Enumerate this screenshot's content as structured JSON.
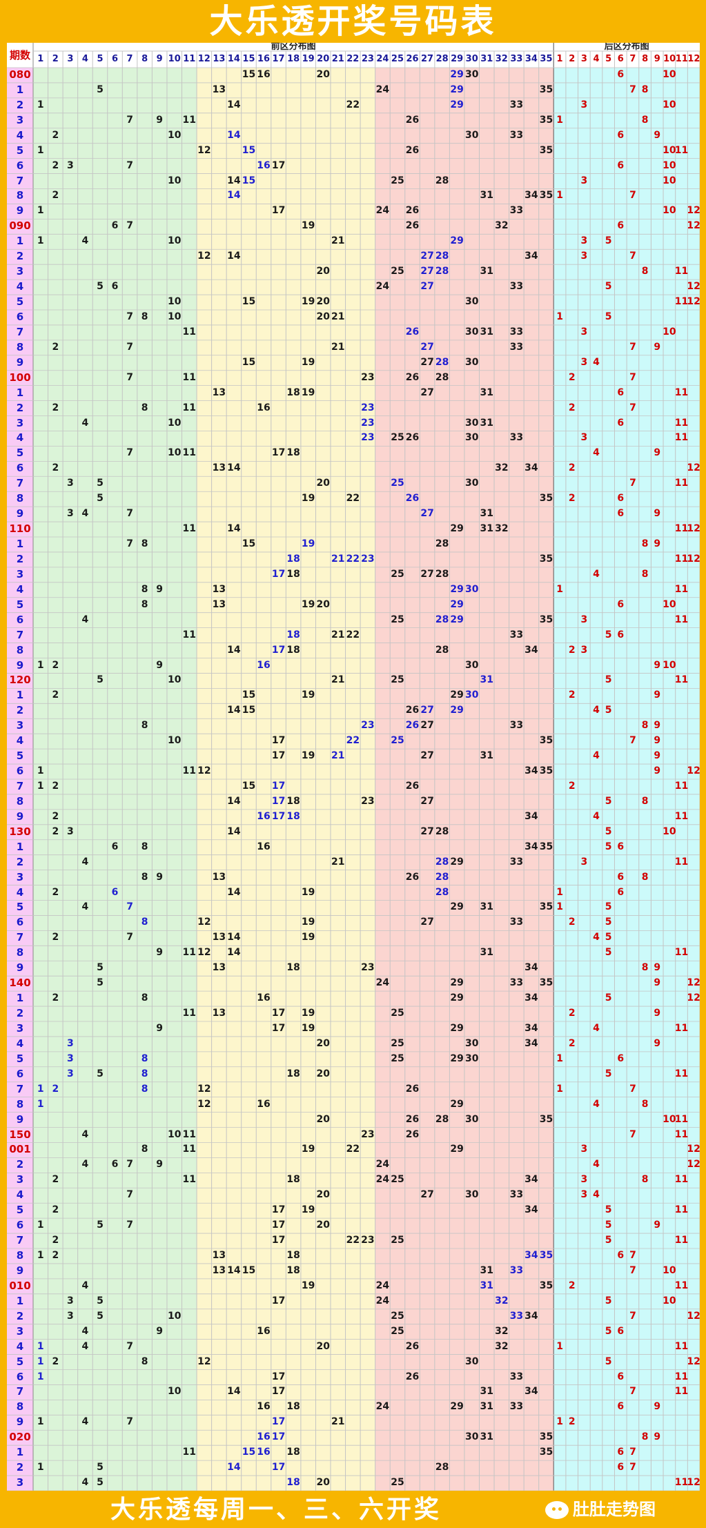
{
  "title": "大乐透开奖号码表",
  "header": {
    "period_label": "期数",
    "front_label": "前区分布图",
    "back_label": "后区分布图"
  },
  "footer": {
    "text": "大乐透每周一、三、六开奖",
    "brand": "肚肚走势图"
  },
  "colors": {
    "bg": "#f7b500",
    "period_bg": "#f9cbf5",
    "zone1": "#dbf4d8",
    "zone2": "#fdf6cc",
    "zone3": "#fbd5d0",
    "back_bg": "#ccfafa",
    "grid": "#c4c4c4",
    "normal": "#1a1a1a",
    "highlight": "#1f1fd0",
    "back": "#d30000",
    "period_red": "#d30000",
    "period_blue": "#1a1acc"
  },
  "rows": [
    {
      "p": "080",
      "f": [
        15,
        16,
        20,
        29,
        30
      ],
      "b": [
        6,
        10
      ],
      "hl": [
        29
      ]
    },
    {
      "p": "1",
      "f": [
        5,
        13,
        24,
        29,
        35
      ],
      "b": [
        7,
        8
      ],
      "hl": [
        29
      ]
    },
    {
      "p": "2",
      "f": [
        1,
        14,
        22,
        29,
        33
      ],
      "b": [
        3,
        10
      ],
      "hl": [
        29
      ]
    },
    {
      "p": "3",
      "f": [
        7,
        9,
        11,
        26,
        35
      ],
      "b": [
        1,
        8
      ],
      "hl": []
    },
    {
      "p": "4",
      "f": [
        2,
        10,
        14,
        30,
        33
      ],
      "b": [
        6,
        9
      ],
      "hl": [
        14
      ]
    },
    {
      "p": "5",
      "f": [
        1,
        12,
        15,
        26,
        35
      ],
      "b": [
        10,
        11
      ],
      "hl": [
        15
      ]
    },
    {
      "p": "6",
      "f": [
        2,
        3,
        7,
        16,
        17
      ],
      "b": [
        6,
        10
      ],
      "hl": [
        16
      ]
    },
    {
      "p": "7",
      "f": [
        10,
        14,
        15,
        25,
        28
      ],
      "b": [
        3,
        10
      ],
      "hl": [
        15
      ]
    },
    {
      "p": "8",
      "f": [
        2,
        14,
        31,
        34,
        35
      ],
      "b": [
        1,
        7
      ],
      "hl": [
        14
      ]
    },
    {
      "p": "9",
      "f": [
        1,
        17,
        24,
        26,
        33
      ],
      "b": [
        10,
        12
      ],
      "hl": []
    },
    {
      "p": "090",
      "f": [
        6,
        7,
        19,
        26,
        32
      ],
      "b": [
        6,
        12
      ],
      "hl": []
    },
    {
      "p": "1",
      "f": [
        1,
        4,
        10,
        21,
        29
      ],
      "b": [
        3,
        5
      ],
      "hl": [
        29
      ]
    },
    {
      "p": "2",
      "f": [
        12,
        14,
        27,
        28,
        34
      ],
      "b": [
        3,
        7
      ],
      "hl": [
        27,
        28
      ]
    },
    {
      "p": "3",
      "f": [
        20,
        25,
        27,
        28,
        31
      ],
      "b": [
        8,
        11
      ],
      "hl": [
        27,
        28
      ]
    },
    {
      "p": "4",
      "f": [
        5,
        6,
        24,
        27,
        33
      ],
      "b": [
        5,
        12
      ],
      "hl": [
        27
      ]
    },
    {
      "p": "5",
      "f": [
        10,
        15,
        19,
        20,
        30
      ],
      "b": [
        11,
        12
      ],
      "hl": []
    },
    {
      "p": "6",
      "f": [
        7,
        8,
        10,
        20,
        21
      ],
      "b": [
        1,
        5
      ],
      "hl": []
    },
    {
      "p": "7",
      "f": [
        11,
        26,
        30,
        31,
        33
      ],
      "b": [
        3,
        10
      ],
      "hl": [
        26
      ]
    },
    {
      "p": "8",
      "f": [
        2,
        7,
        21,
        27,
        33
      ],
      "b": [
        7,
        9
      ],
      "hl": [
        27
      ]
    },
    {
      "p": "9",
      "f": [
        15,
        19,
        27,
        28,
        30
      ],
      "b": [
        3,
        4
      ],
      "hl": [
        28
      ]
    },
    {
      "p": "100",
      "f": [
        7,
        11,
        23,
        26,
        28
      ],
      "b": [
        2,
        7
      ],
      "hl": []
    },
    {
      "p": "1",
      "f": [
        13,
        18,
        19,
        27,
        31
      ],
      "b": [
        6,
        11
      ],
      "hl": []
    },
    {
      "p": "2",
      "f": [
        2,
        8,
        11,
        16,
        23
      ],
      "b": [
        2,
        7
      ],
      "hl": [
        23
      ]
    },
    {
      "p": "3",
      "f": [
        4,
        10,
        23,
        30,
        31
      ],
      "b": [
        6,
        11
      ],
      "hl": [
        23
      ]
    },
    {
      "p": "4",
      "f": [
        23,
        25,
        26,
        30,
        33
      ],
      "b": [
        3,
        11
      ],
      "hl": [
        23
      ]
    },
    {
      "p": "5",
      "f": [
        7,
        10,
        11,
        17,
        18
      ],
      "b": [
        4,
        9
      ],
      "hl": []
    },
    {
      "p": "6",
      "f": [
        2,
        13,
        14,
        32,
        34
      ],
      "b": [
        2,
        12
      ],
      "hl": []
    },
    {
      "p": "7",
      "f": [
        3,
        5,
        20,
        25,
        30
      ],
      "b": [
        7,
        11
      ],
      "hl": [
        25
      ]
    },
    {
      "p": "8",
      "f": [
        5,
        19,
        22,
        26,
        35
      ],
      "b": [
        2,
        6
      ],
      "hl": [
        26
      ]
    },
    {
      "p": "9",
      "f": [
        3,
        4,
        7,
        27,
        31
      ],
      "b": [
        6,
        9
      ],
      "hl": [
        27
      ]
    },
    {
      "p": "110",
      "f": [
        11,
        14,
        29,
        31,
        32
      ],
      "b": [
        11,
        12
      ],
      "hl": []
    },
    {
      "p": "1",
      "f": [
        7,
        8,
        15,
        19,
        28
      ],
      "b": [
        8,
        9
      ],
      "hl": [
        19
      ]
    },
    {
      "p": "2",
      "f": [
        18,
        21,
        22,
        23,
        35
      ],
      "b": [
        11,
        12
      ],
      "hl": [
        18,
        21,
        22,
        23
      ]
    },
    {
      "p": "3",
      "f": [
        17,
        18,
        25,
        27,
        28
      ],
      "b": [
        4,
        8
      ],
      "hl": [
        17
      ]
    },
    {
      "p": "4",
      "f": [
        8,
        9,
        13,
        29,
        30
      ],
      "b": [
        1,
        11
      ],
      "hl": [
        29,
        30
      ]
    },
    {
      "p": "5",
      "f": [
        8,
        13,
        19,
        20,
        29
      ],
      "b": [
        6,
        10
      ],
      "hl": [
        29
      ]
    },
    {
      "p": "6",
      "f": [
        4,
        25,
        28,
        29,
        35
      ],
      "b": [
        3,
        11
      ],
      "hl": [
        28,
        29
      ]
    },
    {
      "p": "7",
      "f": [
        11,
        18,
        21,
        22,
        33
      ],
      "b": [
        5,
        6
      ],
      "hl": [
        18
      ]
    },
    {
      "p": "8",
      "f": [
        14,
        17,
        18,
        28,
        34
      ],
      "b": [
        2,
        3
      ],
      "hl": [
        17
      ]
    },
    {
      "p": "9",
      "f": [
        1,
        2,
        9,
        16,
        30
      ],
      "b": [
        9,
        10
      ],
      "hl": [
        16
      ]
    },
    {
      "p": "120",
      "f": [
        5,
        10,
        21,
        25,
        31
      ],
      "b": [
        5,
        11
      ],
      "hl": [
        31
      ]
    },
    {
      "p": "1",
      "f": [
        2,
        15,
        19,
        29,
        30
      ],
      "b": [
        2,
        9
      ],
      "hl": [
        30
      ]
    },
    {
      "p": "2",
      "f": [
        14,
        15,
        26,
        27,
        29
      ],
      "b": [
        4,
        5
      ],
      "hl": [
        27,
        29
      ]
    },
    {
      "p": "3",
      "f": [
        8,
        23,
        26,
        27,
        33
      ],
      "b": [
        8,
        9
      ],
      "hl": [
        23,
        26
      ]
    },
    {
      "p": "4",
      "f": [
        10,
        17,
        22,
        25,
        35
      ],
      "b": [
        7,
        9
      ],
      "hl": [
        22,
        25
      ]
    },
    {
      "p": "5",
      "f": [
        17,
        19,
        21,
        27,
        31
      ],
      "b": [
        4,
        9
      ],
      "hl": [
        21
      ]
    },
    {
      "p": "6",
      "f": [
        1,
        11,
        12,
        34,
        35
      ],
      "b": [
        9,
        12
      ],
      "hl": []
    },
    {
      "p": "7",
      "f": [
        1,
        2,
        15,
        17,
        26
      ],
      "b": [
        2,
        11
      ],
      "hl": [
        17
      ]
    },
    {
      "p": "8",
      "f": [
        14,
        17,
        18,
        23,
        27
      ],
      "b": [
        5,
        8
      ],
      "hl": [
        17
      ]
    },
    {
      "p": "9",
      "f": [
        2,
        16,
        17,
        18,
        34
      ],
      "b": [
        4,
        11
      ],
      "hl": [
        16,
        17,
        18
      ]
    },
    {
      "p": "130",
      "f": [
        2,
        3,
        14,
        27,
        28
      ],
      "b": [
        5,
        10
      ],
      "hl": []
    },
    {
      "p": "1",
      "f": [
        6,
        8,
        16,
        34,
        35
      ],
      "b": [
        5,
        6
      ],
      "hl": []
    },
    {
      "p": "2",
      "f": [
        4,
        21,
        28,
        29,
        33
      ],
      "b": [
        3,
        11
      ],
      "hl": [
        28
      ]
    },
    {
      "p": "3",
      "f": [
        8,
        9,
        13,
        26,
        28
      ],
      "b": [
        6,
        8
      ],
      "hl": [
        28
      ]
    },
    {
      "p": "4",
      "f": [
        2,
        6,
        14,
        19,
        28
      ],
      "b": [
        1,
        6
      ],
      "hl": [
        6,
        28
      ]
    },
    {
      "p": "5",
      "f": [
        4,
        7,
        29,
        31,
        35
      ],
      "b": [
        1,
        5
      ],
      "hl": [
        7
      ]
    },
    {
      "p": "6",
      "f": [
        8,
        12,
        19,
        27,
        33
      ],
      "b": [
        2,
        5
      ],
      "hl": [
        8
      ]
    },
    {
      "p": "7",
      "f": [
        2,
        7,
        13,
        14,
        19
      ],
      "b": [
        4,
        5
      ],
      "hl": []
    },
    {
      "p": "8",
      "f": [
        9,
        11,
        12,
        14,
        31
      ],
      "b": [
        5,
        11
      ],
      "hl": []
    },
    {
      "p": "9",
      "f": [
        5,
        13,
        18,
        23,
        34
      ],
      "b": [
        8,
        9
      ],
      "hl": []
    },
    {
      "p": "140",
      "f": [
        5,
        24,
        29,
        33,
        35
      ],
      "b": [
        9,
        12
      ],
      "hl": []
    },
    {
      "p": "1",
      "f": [
        2,
        8,
        16,
        29,
        34
      ],
      "b": [
        5,
        12
      ],
      "hl": []
    },
    {
      "p": "2",
      "f": [
        11,
        13,
        17,
        19,
        25
      ],
      "b": [
        2,
        9
      ],
      "hl": []
    },
    {
      "p": "3",
      "f": [
        9,
        17,
        19,
        29,
        34
      ],
      "b": [
        4,
        11
      ],
      "hl": []
    },
    {
      "p": "4",
      "f": [
        3,
        20,
        25,
        30,
        34
      ],
      "b": [
        2,
        9
      ],
      "hl": [
        3
      ]
    },
    {
      "p": "5",
      "f": [
        3,
        8,
        25,
        29,
        30
      ],
      "b": [
        1,
        6
      ],
      "hl": [
        3,
        8
      ]
    },
    {
      "p": "6",
      "f": [
        3,
        5,
        8,
        18,
        20
      ],
      "b": [
        5,
        11
      ],
      "hl": [
        3,
        8
      ]
    },
    {
      "p": "7",
      "f": [
        1,
        2,
        8,
        12,
        26
      ],
      "b": [
        1,
        7
      ],
      "hl": [
        1,
        2,
        8
      ]
    },
    {
      "p": "8",
      "f": [
        1,
        12,
        16,
        29
      ],
      "b": [
        4,
        8
      ],
      "hl": [
        1
      ]
    },
    {
      "p": "9",
      "f": [
        20,
        26,
        28,
        30,
        35
      ],
      "b": [
        10,
        11
      ],
      "hl": []
    },
    {
      "p": "150",
      "f": [
        4,
        10,
        11,
        23,
        26
      ],
      "b": [
        7,
        11
      ],
      "hl": []
    },
    {
      "p": "001",
      "f": [
        8,
        11,
        19,
        22,
        29
      ],
      "b": [
        3,
        12
      ],
      "hl": []
    },
    {
      "p": "2",
      "f": [
        4,
        6,
        7,
        9,
        24
      ],
      "b": [
        4,
        12
      ],
      "hl": []
    },
    {
      "p": "3",
      "f": [
        2,
        11,
        18,
        24,
        25,
        34
      ],
      "b": [
        3,
        8,
        11
      ],
      "hl": []
    },
    {
      "p": "4",
      "f": [
        7,
        20,
        27,
        30,
        33
      ],
      "b": [
        3,
        4
      ],
      "hl": []
    },
    {
      "p": "5",
      "f": [
        2,
        17,
        19,
        34
      ],
      "b": [
        5,
        11
      ],
      "hl": []
    },
    {
      "p": "6",
      "f": [
        1,
        5,
        7,
        17,
        20
      ],
      "b": [
        5,
        9
      ],
      "hl": []
    },
    {
      "p": "7",
      "f": [
        2,
        17,
        22,
        23,
        25
      ],
      "b": [
        5,
        11
      ],
      "hl": []
    },
    {
      "p": "8",
      "f": [
        1,
        2,
        13,
        18,
        34,
        35
      ],
      "b": [
        6,
        7
      ],
      "hl": [
        34,
        35
      ]
    },
    {
      "p": "9",
      "f": [
        13,
        14,
        15,
        18,
        31,
        33
      ],
      "b": [
        7,
        10
      ],
      "hl": [
        33
      ]
    },
    {
      "p": "010",
      "f": [
        4,
        19,
        24,
        31,
        35
      ],
      "b": [
        2,
        11
      ],
      "hl": [
        31
      ]
    },
    {
      "p": "1",
      "f": [
        3,
        5,
        17,
        24,
        32
      ],
      "b": [
        5,
        10
      ],
      "hl": [
        32
      ]
    },
    {
      "p": "2",
      "f": [
        3,
        5,
        10,
        25,
        33,
        34
      ],
      "b": [
        7,
        12
      ],
      "hl": [
        33
      ]
    },
    {
      "p": "3",
      "f": [
        4,
        9,
        16,
        25,
        32
      ],
      "b": [
        5,
        6
      ],
      "hl": []
    },
    {
      "p": "4",
      "f": [
        1,
        4,
        7,
        20,
        26,
        32
      ],
      "b": [
        1,
        11
      ],
      "hl": [
        1
      ]
    },
    {
      "p": "5",
      "f": [
        1,
        2,
        8,
        12,
        30
      ],
      "b": [
        5,
        12
      ],
      "hl": [
        1
      ]
    },
    {
      "p": "6",
      "f": [
        1,
        17,
        26,
        33
      ],
      "b": [
        6,
        11
      ],
      "hl": [
        1
      ]
    },
    {
      "p": "7",
      "f": [
        10,
        14,
        17,
        31,
        34
      ],
      "b": [
        7,
        11
      ],
      "hl": []
    },
    {
      "p": "8",
      "f": [
        16,
        18,
        24,
        29,
        31,
        33
      ],
      "b": [
        6,
        9
      ],
      "hl": []
    },
    {
      "p": "9",
      "f": [
        1,
        4,
        7,
        17,
        21
      ],
      "b": [
        1,
        2
      ],
      "hl": [
        17
      ]
    },
    {
      "p": "020",
      "f": [
        16,
        17,
        30,
        31,
        35
      ],
      "b": [
        8,
        9
      ],
      "hl": [
        16,
        17
      ]
    },
    {
      "p": "1",
      "f": [
        11,
        15,
        16,
        18,
        35
      ],
      "b": [
        6,
        7
      ],
      "hl": [
        15,
        16
      ]
    },
    {
      "p": "2",
      "f": [
        1,
        5,
        14,
        17,
        28
      ],
      "b": [
        6,
        7
      ],
      "hl": [
        14,
        17
      ]
    },
    {
      "p": "3",
      "f": [
        4,
        5,
        18,
        20,
        25
      ],
      "b": [
        11,
        12
      ],
      "hl": [
        18
      ]
    }
  ]
}
